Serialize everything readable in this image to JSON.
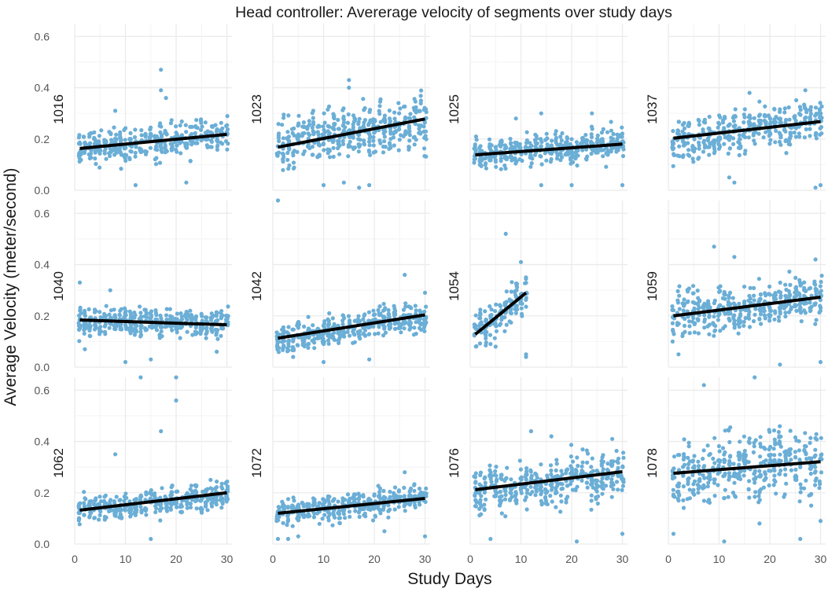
{
  "chart_data": {
    "type": "scatter",
    "title": "Head controller: Avererage velocity of segments over study days",
    "xlabel": "Study Days",
    "ylabel": "Average Velocity (meter/second)",
    "xlim": [
      0,
      31
    ],
    "ylim": [
      0,
      0.65
    ],
    "x_ticks": [
      0,
      10,
      20,
      30
    ],
    "y_ticks": [
      0.0,
      0.2,
      0.4,
      0.6
    ],
    "x_tick_labels": [
      "0",
      "10",
      "20",
      "30"
    ],
    "y_tick_labels": [
      "0.0",
      "0.2",
      "0.4",
      "0.6"
    ],
    "point_color": "#6baed6",
    "line_color": "#000000",
    "facets": [
      {
        "id": "1016",
        "days": [
          1,
          30
        ],
        "mean_start": 0.16,
        "mean_end": 0.22,
        "spread": 0.045,
        "fit": {
          "x": [
            1,
            30
          ],
          "y": [
            0.163,
            0.218
          ]
        },
        "outliers": [
          [
            17,
            0.47
          ],
          [
            17,
            0.39
          ],
          [
            18,
            0.36
          ],
          [
            8,
            0.31
          ],
          [
            22,
            0.03
          ],
          [
            12,
            0.02
          ]
        ]
      },
      {
        "id": "1023",
        "days": [
          1,
          30
        ],
        "mean_start": 0.17,
        "mean_end": 0.28,
        "spread": 0.07,
        "fit": {
          "x": [
            1,
            30
          ],
          "y": [
            0.168,
            0.278
          ]
        },
        "outliers": [
          [
            15,
            0.43
          ],
          [
            15,
            0.4
          ],
          [
            19,
            0.02
          ],
          [
            17,
            0.01
          ],
          [
            10,
            0.02
          ],
          [
            14,
            0.03
          ]
        ]
      },
      {
        "id": "1025",
        "days": [
          1,
          30
        ],
        "mean_start": 0.14,
        "mean_end": 0.18,
        "spread": 0.04,
        "fit": {
          "x": [
            1,
            30
          ],
          "y": [
            0.138,
            0.18
          ]
        },
        "outliers": [
          [
            24,
            0.3
          ],
          [
            14,
            0.3
          ],
          [
            9,
            0.28
          ],
          [
            20,
            0.02
          ],
          [
            14,
            0.02
          ],
          [
            30,
            0.02
          ]
        ]
      },
      {
        "id": "1037",
        "days": [
          1,
          30
        ],
        "mean_start": 0.2,
        "mean_end": 0.27,
        "spread": 0.055,
        "fit": {
          "x": [
            1,
            30
          ],
          "y": [
            0.203,
            0.268
          ]
        },
        "outliers": [
          [
            27,
            0.39
          ],
          [
            16,
            0.38
          ],
          [
            13,
            0.03
          ],
          [
            29,
            0.01
          ],
          [
            30,
            0.02
          ],
          [
            12,
            0.05
          ]
        ]
      },
      {
        "id": "1040",
        "days": [
          1,
          30
        ],
        "mean_start": 0.18,
        "mean_end": 0.17,
        "spread": 0.035,
        "fit": {
          "x": [
            1,
            30
          ],
          "y": [
            0.184,
            0.165
          ]
        },
        "outliers": [
          [
            1,
            0.33
          ],
          [
            7,
            0.3
          ],
          [
            10,
            0.02
          ],
          [
            15,
            0.03
          ],
          [
            28,
            0.06
          ],
          [
            2,
            0.07
          ]
        ]
      },
      {
        "id": "1042",
        "days": [
          1,
          30
        ],
        "mean_start": 0.11,
        "mean_end": 0.2,
        "spread": 0.04,
        "fit": {
          "x": [
            1,
            30
          ],
          "y": [
            0.113,
            0.204
          ]
        },
        "outliers": [
          [
            1,
            0.65
          ],
          [
            26,
            0.36
          ],
          [
            30,
            0.29
          ],
          [
            10,
            0.02
          ],
          [
            19,
            0.03
          ],
          [
            4,
            0.04
          ]
        ]
      },
      {
        "id": "1054",
        "days": [
          1,
          11
        ],
        "mean_start": 0.13,
        "mean_end": 0.29,
        "spread": 0.05,
        "fit": {
          "x": [
            1,
            11
          ],
          "y": [
            0.128,
            0.29
          ]
        },
        "outliers": [
          [
            7,
            0.52
          ],
          [
            10,
            0.41
          ],
          [
            11,
            0.05
          ],
          [
            11,
            0.04
          ],
          [
            5,
            0.08
          ],
          [
            4,
            0.09
          ]
        ]
      },
      {
        "id": "1059",
        "days": [
          1,
          30
        ],
        "mean_start": 0.2,
        "mean_end": 0.27,
        "spread": 0.06,
        "fit": {
          "x": [
            1,
            30
          ],
          "y": [
            0.2,
            0.273
          ]
        },
        "outliers": [
          [
            9,
            0.47
          ],
          [
            13,
            0.43
          ],
          [
            29,
            0.42
          ],
          [
            22,
            0.01
          ],
          [
            30,
            0.02
          ],
          [
            2,
            0.05
          ]
        ]
      },
      {
        "id": "1062",
        "days": [
          1,
          30
        ],
        "mean_start": 0.13,
        "mean_end": 0.2,
        "spread": 0.035,
        "fit": {
          "x": [
            1,
            30
          ],
          "y": [
            0.132,
            0.2
          ]
        },
        "outliers": [
          [
            20,
            0.65
          ],
          [
            20,
            0.56
          ],
          [
            13,
            0.65
          ],
          [
            17,
            0.44
          ],
          [
            8,
            0.35
          ],
          [
            15,
            0.02
          ]
        ]
      },
      {
        "id": "1072",
        "days": [
          1,
          30
        ],
        "mean_start": 0.12,
        "mean_end": 0.18,
        "spread": 0.035,
        "fit": {
          "x": [
            1,
            30
          ],
          "y": [
            0.12,
            0.178
          ]
        },
        "outliers": [
          [
            26,
            0.28
          ],
          [
            1,
            0.02
          ],
          [
            3,
            0.02
          ],
          [
            5,
            0.03
          ],
          [
            22,
            0.05
          ],
          [
            30,
            0.03
          ]
        ]
      },
      {
        "id": "1076",
        "days": [
          1,
          30
        ],
        "mean_start": 0.21,
        "mean_end": 0.28,
        "spread": 0.06,
        "fit": {
          "x": [
            1,
            30
          ],
          "y": [
            0.212,
            0.282
          ]
        },
        "outliers": [
          [
            12,
            0.44
          ],
          [
            16,
            0.42
          ],
          [
            28,
            0.41
          ],
          [
            21,
            0.01
          ],
          [
            4,
            0.02
          ],
          [
            30,
            0.04
          ]
        ]
      },
      {
        "id": "1078",
        "days": [
          1,
          30
        ],
        "mean_start": 0.28,
        "mean_end": 0.32,
        "spread": 0.09,
        "fit": {
          "x": [
            1,
            30
          ],
          "y": [
            0.276,
            0.321
          ]
        },
        "outliers": [
          [
            7,
            0.62
          ],
          [
            17,
            0.65
          ],
          [
            1,
            0.04
          ],
          [
            11,
            0.01
          ],
          [
            26,
            0.02
          ],
          [
            30,
            0.09
          ]
        ]
      }
    ]
  }
}
